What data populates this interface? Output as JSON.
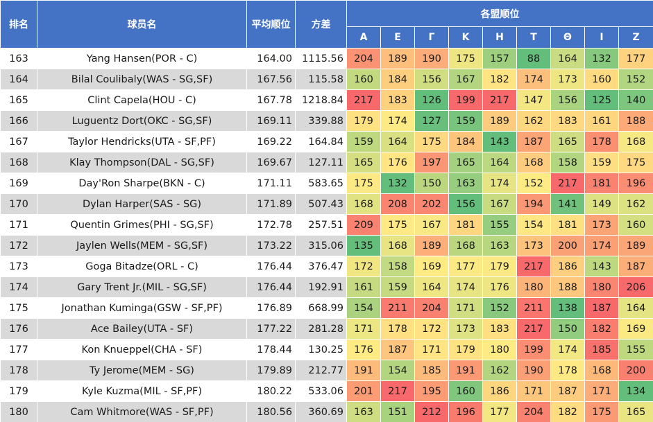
{
  "headers": {
    "rank": "排名",
    "player": "球员名",
    "avg": "平均顺位",
    "variance": "方差",
    "league_group": "各盟顺位",
    "leagues": [
      "A",
      "E",
      "Γ",
      "K",
      "H",
      "T",
      "Θ",
      "I",
      "Z"
    ]
  },
  "colors": {
    "header_bg": "#4472c4",
    "header_text": "#ffffff",
    "row_odd": "#d9d9d9",
    "row_even": "#ffffff",
    "scale_low": "#63be7b",
    "scale_mid": "#ffeb84",
    "scale_high": "#f8696b"
  },
  "rows": [
    {
      "rank": "163",
      "player": "Yang Hansen(POR - C)",
      "avg": "164.00",
      "variance": "1115.56",
      "ranks": [
        204,
        189,
        190,
        175,
        157,
        88,
        164,
        132,
        177
      ]
    },
    {
      "rank": "164",
      "player": "Bilal Coulibaly(WAS - SG,SF)",
      "avg": "167.56",
      "variance": "115.58",
      "ranks": [
        160,
        184,
        156,
        167,
        182,
        174,
        173,
        160,
        152
      ]
    },
    {
      "rank": "165",
      "player": "Clint Capela(HOU - C)",
      "avg": "167.78",
      "variance": "1218.84",
      "ranks": [
        217,
        183,
        126,
        199,
        217,
        147,
        156,
        125,
        140
      ]
    },
    {
      "rank": "166",
      "player": "Luguentz Dort(OKC - SG,SF)",
      "avg": "169.11",
      "variance": "339.88",
      "ranks": [
        179,
        174,
        127,
        159,
        189,
        162,
        183,
        161,
        188
      ]
    },
    {
      "rank": "167",
      "player": "Taylor Hendricks(UTA - SF,PF)",
      "avg": "169.22",
      "variance": "164.84",
      "ranks": [
        159,
        164,
        175,
        184,
        143,
        187,
        165,
        178,
        168
      ]
    },
    {
      "rank": "168",
      "player": "Klay Thompson(DAL - SG,SF)",
      "avg": "169.67",
      "variance": "127.11",
      "ranks": [
        165,
        176,
        197,
        165,
        164,
        168,
        158,
        159,
        175
      ]
    },
    {
      "rank": "169",
      "player": "Day'Ron Sharpe(BKN - C)",
      "avg": "171.11",
      "variance": "583.65",
      "ranks": [
        175,
        132,
        150,
        163,
        174,
        152,
        217,
        181,
        196
      ]
    },
    {
      "rank": "170",
      "player": "Dylan Harper(SAS - SG)",
      "avg": "171.89",
      "variance": "507.43",
      "ranks": [
        168,
        208,
        202,
        156,
        167,
        194,
        141,
        149,
        162
      ]
    },
    {
      "rank": "171",
      "player": "Quentin Grimes(PHI - SG,SF)",
      "avg": "172.78",
      "variance": "257.51",
      "ranks": [
        209,
        175,
        167,
        181,
        155,
        154,
        181,
        173,
        160
      ]
    },
    {
      "rank": "172",
      "player": "Jaylen Wells(MEM - SG,SF)",
      "avg": "173.22",
      "variance": "315.06",
      "ranks": [
        135,
        168,
        189,
        168,
        163,
        173,
        200,
        174,
        189
      ]
    },
    {
      "rank": "173",
      "player": "Goga Bitadze(ORL - C)",
      "avg": "176.44",
      "variance": "376.47",
      "ranks": [
        172,
        158,
        169,
        177,
        179,
        217,
        186,
        143,
        187
      ]
    },
    {
      "rank": "174",
      "player": "Gary Trent Jr.(MIL - SG,SF)",
      "avg": "176.44",
      "variance": "192.91",
      "ranks": [
        161,
        159,
        164,
        174,
        176,
        180,
        188,
        180,
        206
      ]
    },
    {
      "rank": "175",
      "player": "Jonathan Kuminga(GSW - SF,PF)",
      "avg": "176.89",
      "variance": "668.99",
      "ranks": [
        154,
        211,
        204,
        171,
        152,
        211,
        138,
        187,
        164
      ]
    },
    {
      "rank": "176",
      "player": "Ace Bailey(UTA - SF)",
      "avg": "177.22",
      "variance": "281.28",
      "ranks": [
        171,
        178,
        172,
        173,
        183,
        217,
        150,
        182,
        169
      ]
    },
    {
      "rank": "177",
      "player": "Kon Knueppel(CHA - SF)",
      "avg": "178.44",
      "variance": "130.25",
      "ranks": [
        176,
        187,
        171,
        179,
        180,
        199,
        174,
        185,
        155
      ]
    },
    {
      "rank": "178",
      "player": "Ty Jerome(MEM - SG)",
      "avg": "179.89",
      "variance": "212.77",
      "ranks": [
        191,
        154,
        185,
        191,
        162,
        190,
        178,
        168,
        200
      ]
    },
    {
      "rank": "179",
      "player": "Kyle Kuzma(MIL - SF,PF)",
      "avg": "180.22",
      "variance": "533.06",
      "ranks": [
        201,
        217,
        195,
        160,
        186,
        171,
        187,
        171,
        134
      ]
    },
    {
      "rank": "180",
      "player": "Cam Whitmore(WAS - SF,PF)",
      "avg": "180.56",
      "variance": "360.69",
      "ranks": [
        163,
        151,
        212,
        196,
        177,
        204,
        182,
        175,
        165
      ]
    }
  ]
}
